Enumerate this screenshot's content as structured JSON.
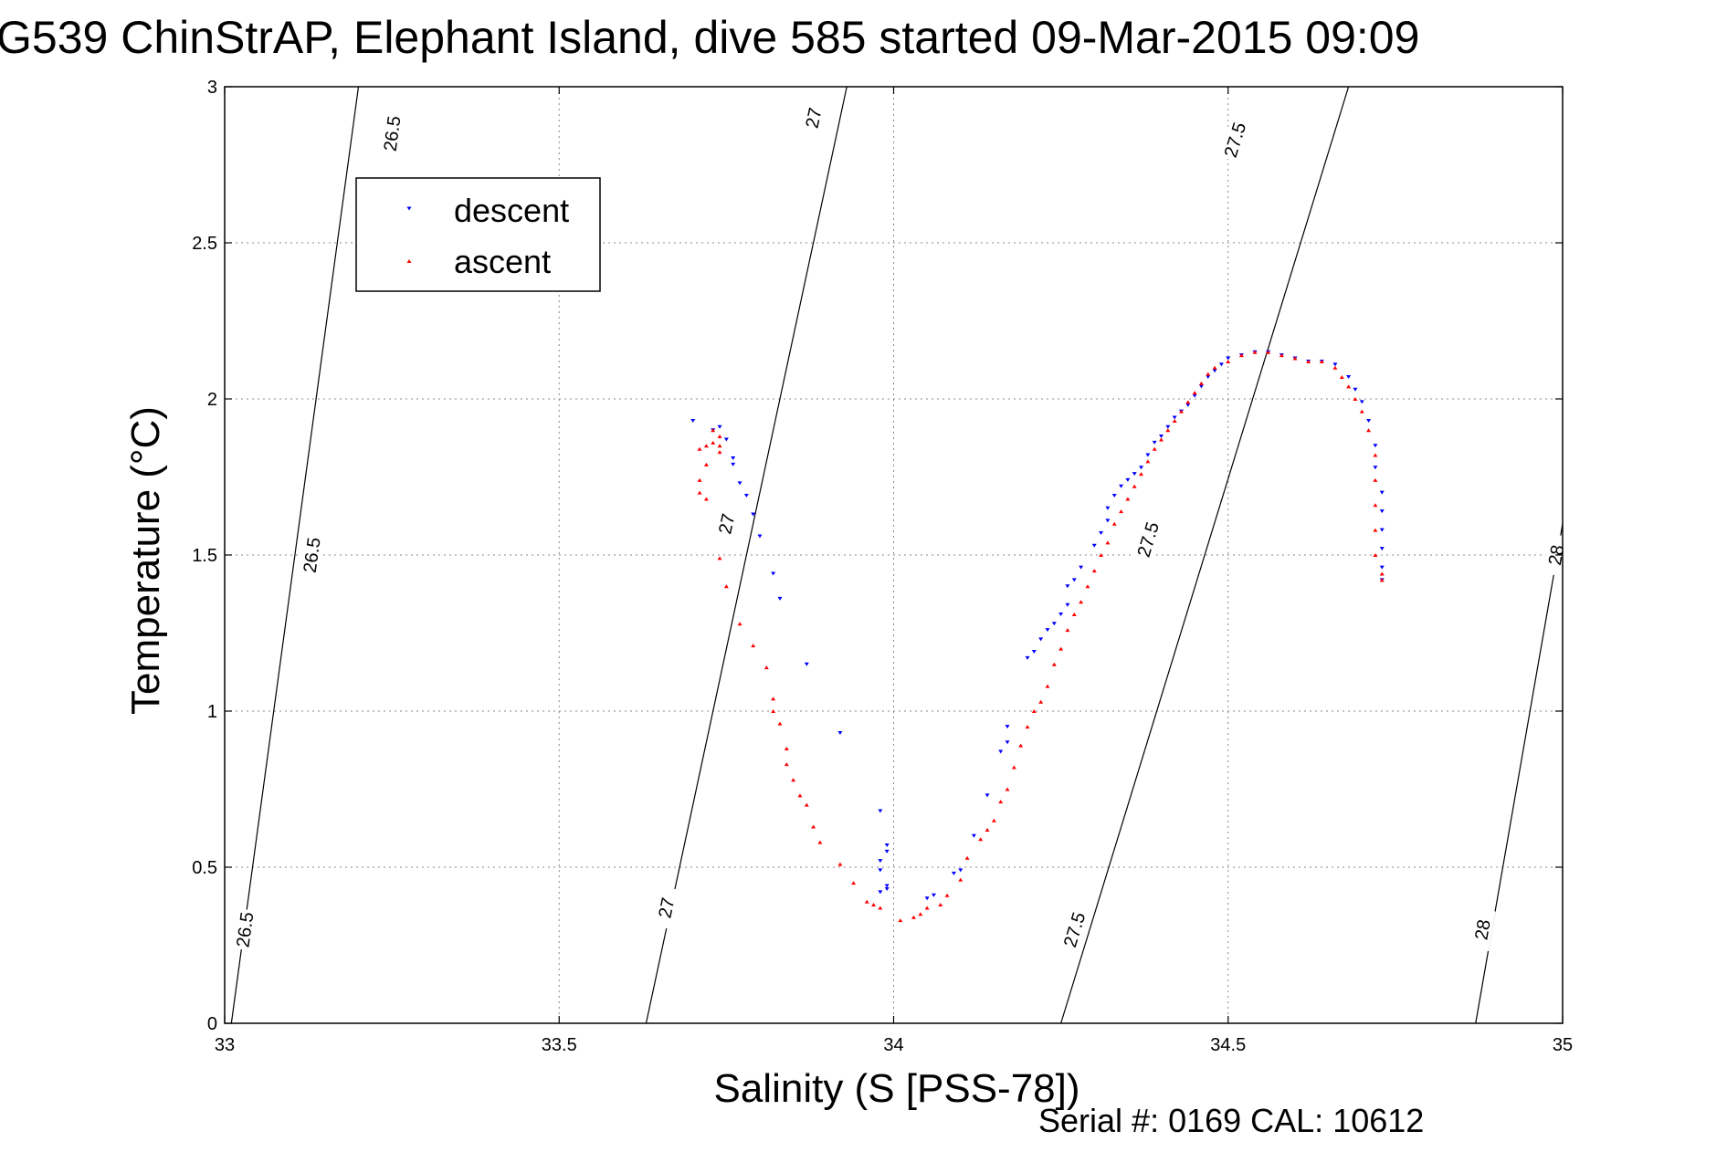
{
  "chart_data": {
    "type": "scatter",
    "title": "G539 ChinStrAP, Elephant Island, dive 585 started 09-Mar-2015 09:09",
    "xlabel": "Salinity (S [PSS-78])",
    "ylabel": "Temperature (°C)",
    "xlim": [
      33,
      35
    ],
    "ylim": [
      0,
      3
    ],
    "grid": true,
    "legend_placement": "top-left",
    "x_ticks": [
      "33",
      "33.5",
      "34",
      "34.5",
      "35"
    ],
    "y_ticks": [
      "0",
      "0.5",
      "1",
      "1.5",
      "2",
      "2.5",
      "3"
    ],
    "footer": "Serial #: 0169 CAL: 10612",
    "density_contours": [
      {
        "label": "26.5",
        "line": [
          [
            33.01,
            0
          ],
          [
            33.2,
            3
          ]
        ],
        "label_positions": [
          [
            33.03,
            0.3
          ],
          [
            33.13,
            1.5
          ],
          [
            33.25,
            2.85
          ]
        ]
      },
      {
        "label": "27",
        "line": [
          [
            33.63,
            0
          ],
          [
            33.93,
            3
          ]
        ],
        "label_positions": [
          [
            33.66,
            0.37
          ],
          [
            33.75,
            1.6
          ],
          [
            33.88,
            2.9
          ]
        ]
      },
      {
        "label": "27.5",
        "line": [
          [
            34.25,
            0
          ],
          [
            34.68,
            3
          ]
        ],
        "label_positions": [
          [
            34.27,
            0.3
          ],
          [
            34.38,
            1.55
          ],
          [
            34.51,
            2.83
          ]
        ]
      },
      {
        "label": "28",
        "line": [
          [
            34.87,
            0
          ],
          [
            35.0,
            1.6
          ]
        ],
        "label_positions": [
          [
            34.88,
            0.3
          ],
          [
            34.99,
            1.5
          ]
        ]
      }
    ],
    "series": [
      {
        "name": "descent",
        "color": "#0000ff",
        "marker": "triangle-down",
        "points": [
          [
            33.7,
            1.93
          ],
          [
            33.73,
            1.9
          ],
          [
            33.74,
            1.91
          ],
          [
            33.75,
            1.87
          ],
          [
            33.76,
            1.79
          ],
          [
            33.76,
            1.81
          ],
          [
            33.77,
            1.73
          ],
          [
            33.78,
            1.69
          ],
          [
            33.79,
            1.63
          ],
          [
            33.8,
            1.56
          ],
          [
            33.82,
            1.44
          ],
          [
            33.83,
            1.36
          ],
          [
            33.87,
            1.15
          ],
          [
            33.92,
            0.93
          ],
          [
            33.98,
            0.68
          ],
          [
            33.98,
            0.52
          ],
          [
            33.99,
            0.55
          ],
          [
            33.99,
            0.57
          ],
          [
            33.98,
            0.49
          ],
          [
            33.99,
            0.44
          ],
          [
            33.99,
            0.43
          ],
          [
            33.98,
            0.42
          ],
          [
            34.05,
            0.4
          ],
          [
            34.06,
            0.41
          ],
          [
            34.09,
            0.48
          ],
          [
            34.1,
            0.49
          ],
          [
            34.12,
            0.6
          ],
          [
            34.14,
            0.73
          ],
          [
            34.16,
            0.87
          ],
          [
            34.17,
            0.9
          ],
          [
            34.17,
            0.95
          ],
          [
            34.2,
            1.17
          ],
          [
            34.21,
            1.19
          ],
          [
            34.22,
            1.23
          ],
          [
            34.23,
            1.26
          ],
          [
            34.24,
            1.28
          ],
          [
            34.25,
            1.31
          ],
          [
            34.26,
            1.34
          ],
          [
            34.26,
            1.4
          ],
          [
            34.27,
            1.42
          ],
          [
            34.28,
            1.46
          ],
          [
            34.3,
            1.53
          ],
          [
            34.31,
            1.57
          ],
          [
            34.32,
            1.61
          ],
          [
            34.32,
            1.65
          ],
          [
            34.33,
            1.69
          ],
          [
            34.34,
            1.72
          ],
          [
            34.35,
            1.74
          ],
          [
            34.36,
            1.76
          ],
          [
            34.37,
            1.78
          ],
          [
            34.38,
            1.82
          ],
          [
            34.39,
            1.86
          ],
          [
            34.4,
            1.88
          ],
          [
            34.41,
            1.91
          ],
          [
            34.42,
            1.94
          ],
          [
            34.43,
            1.96
          ],
          [
            34.44,
            1.98
          ],
          [
            34.45,
            2.01
          ],
          [
            34.46,
            2.04
          ],
          [
            34.47,
            2.07
          ],
          [
            34.48,
            2.09
          ],
          [
            34.49,
            2.11
          ],
          [
            34.5,
            2.13
          ],
          [
            34.52,
            2.14
          ],
          [
            34.54,
            2.15
          ],
          [
            34.56,
            2.15
          ],
          [
            34.58,
            2.14
          ],
          [
            34.6,
            2.13
          ],
          [
            34.62,
            2.12
          ],
          [
            34.64,
            2.12
          ],
          [
            34.66,
            2.11
          ],
          [
            34.68,
            2.07
          ],
          [
            34.69,
            2.03
          ],
          [
            34.7,
            1.99
          ],
          [
            34.71,
            1.93
          ],
          [
            34.72,
            1.85
          ],
          [
            34.72,
            1.78
          ],
          [
            34.73,
            1.7
          ],
          [
            34.73,
            1.64
          ],
          [
            34.73,
            1.58
          ],
          [
            34.73,
            1.52
          ],
          [
            34.73,
            1.46
          ],
          [
            34.73,
            1.42
          ]
        ]
      },
      {
        "name": "ascent",
        "color": "#ff0000",
        "marker": "triangle-up",
        "points": [
          [
            33.71,
            1.84
          ],
          [
            33.72,
            1.85
          ],
          [
            33.73,
            1.86
          ],
          [
            33.73,
            1.9
          ],
          [
            33.74,
            1.88
          ],
          [
            33.74,
            1.85
          ],
          [
            33.74,
            1.83
          ],
          [
            33.72,
            1.79
          ],
          [
            33.71,
            1.74
          ],
          [
            33.71,
            1.7
          ],
          [
            33.72,
            1.68
          ],
          [
            33.74,
            1.49
          ],
          [
            33.75,
            1.4
          ],
          [
            33.77,
            1.28
          ],
          [
            33.79,
            1.21
          ],
          [
            33.81,
            1.14
          ],
          [
            33.82,
            1.04
          ],
          [
            33.82,
            1.0
          ],
          [
            33.83,
            0.96
          ],
          [
            33.84,
            0.88
          ],
          [
            33.84,
            0.83
          ],
          [
            33.85,
            0.78
          ],
          [
            33.86,
            0.73
          ],
          [
            33.87,
            0.7
          ],
          [
            33.88,
            0.63
          ],
          [
            33.89,
            0.58
          ],
          [
            33.92,
            0.51
          ],
          [
            33.94,
            0.45
          ],
          [
            33.96,
            0.39
          ],
          [
            33.97,
            0.38
          ],
          [
            33.98,
            0.37
          ],
          [
            34.01,
            0.33
          ],
          [
            34.03,
            0.34
          ],
          [
            34.04,
            0.35
          ],
          [
            34.05,
            0.37
          ],
          [
            34.07,
            0.38
          ],
          [
            34.08,
            0.41
          ],
          [
            34.1,
            0.46
          ],
          [
            34.11,
            0.53
          ],
          [
            34.13,
            0.59
          ],
          [
            34.14,
            0.62
          ],
          [
            34.15,
            0.65
          ],
          [
            34.16,
            0.71
          ],
          [
            34.17,
            0.75
          ],
          [
            34.18,
            0.82
          ],
          [
            34.19,
            0.89
          ],
          [
            34.2,
            0.95
          ],
          [
            34.21,
            1.0
          ],
          [
            34.22,
            1.03
          ],
          [
            34.23,
            1.08
          ],
          [
            34.24,
            1.15
          ],
          [
            34.25,
            1.2
          ],
          [
            34.26,
            1.26
          ],
          [
            34.27,
            1.31
          ],
          [
            34.28,
            1.35
          ],
          [
            34.29,
            1.4
          ],
          [
            34.3,
            1.45
          ],
          [
            34.31,
            1.5
          ],
          [
            34.32,
            1.54
          ],
          [
            34.33,
            1.6
          ],
          [
            34.34,
            1.64
          ],
          [
            34.35,
            1.68
          ],
          [
            34.36,
            1.72
          ],
          [
            34.37,
            1.76
          ],
          [
            34.38,
            1.8
          ],
          [
            34.39,
            1.84
          ],
          [
            34.4,
            1.87
          ],
          [
            34.41,
            1.9
          ],
          [
            34.42,
            1.93
          ],
          [
            34.43,
            1.96
          ],
          [
            34.44,
            1.99
          ],
          [
            34.45,
            2.02
          ],
          [
            34.46,
            2.05
          ],
          [
            34.47,
            2.08
          ],
          [
            34.48,
            2.1
          ],
          [
            34.5,
            2.12
          ],
          [
            34.52,
            2.14
          ],
          [
            34.54,
            2.15
          ],
          [
            34.56,
            2.15
          ],
          [
            34.58,
            2.14
          ],
          [
            34.6,
            2.13
          ],
          [
            34.62,
            2.12
          ],
          [
            34.64,
            2.12
          ],
          [
            34.66,
            2.1
          ],
          [
            34.67,
            2.07
          ],
          [
            34.68,
            2.04
          ],
          [
            34.69,
            2.0
          ],
          [
            34.7,
            1.96
          ],
          [
            34.71,
            1.9
          ],
          [
            34.72,
            1.82
          ],
          [
            34.72,
            1.74
          ],
          [
            34.72,
            1.66
          ],
          [
            34.72,
            1.58
          ],
          [
            34.72,
            1.5
          ],
          [
            34.73,
            1.44
          ],
          [
            34.73,
            1.42
          ]
        ]
      }
    ]
  }
}
